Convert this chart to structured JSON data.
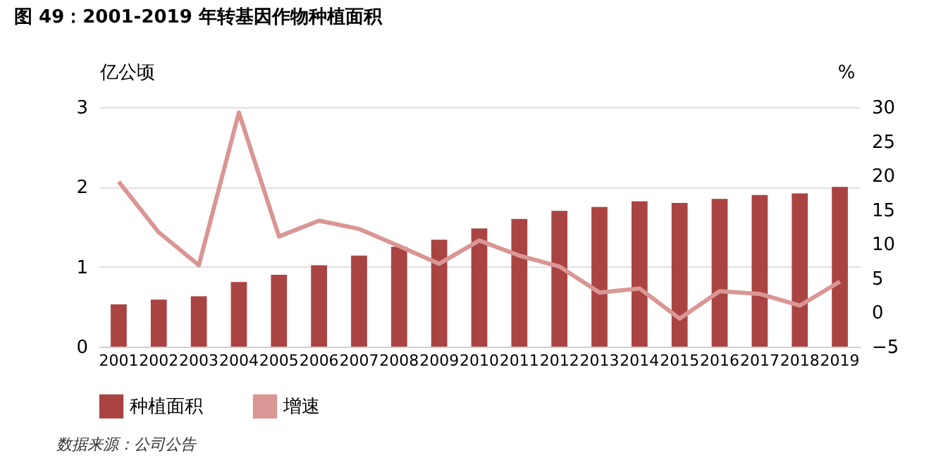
{
  "chart_data": {
    "type": "bar",
    "title": "图 49：2001-2019 年转基因作物种植面积",
    "ylabel": "亿公顷",
    "y2label": "%",
    "categories": [
      "2001",
      "2002",
      "2003",
      "2004",
      "2005",
      "2006",
      "2007",
      "2008",
      "2009",
      "2010",
      "2011",
      "2012",
      "2013",
      "2014",
      "2015",
      "2016",
      "2017",
      "2018",
      "2019"
    ],
    "series": [
      {
        "name": "种植面积",
        "color": "#a94442",
        "values": [
          0.53,
          0.59,
          0.63,
          0.81,
          0.9,
          1.02,
          1.14,
          1.25,
          1.34,
          1.48,
          1.6,
          1.7,
          1.75,
          1.82,
          1.8,
          1.85,
          1.9,
          1.92,
          2.0
        ]
      },
      {
        "name": "增速",
        "type": "line",
        "axis": "y2",
        "color": "#d99694",
        "values": [
          19.1,
          11.7,
          6.9,
          29.2,
          11.1,
          13.4,
          12.2,
          9.7,
          7.1,
          10.5,
          8.3,
          6.7,
          2.9,
          3.5,
          -0.9,
          3.1,
          2.7,
          1.0,
          4.5
        ]
      }
    ],
    "ylim": [
      0,
      3
    ],
    "yticks": [
      0,
      1,
      2,
      3
    ],
    "y2lim": [
      -5,
      30
    ],
    "y2ticks": [
      -5,
      0,
      5,
      10,
      15,
      20,
      25,
      30
    ],
    "grid": "y",
    "legend": "bottom",
    "marker": "none",
    "line_style": "solid",
    "annotations": [
      "数据来源：公司公告"
    ]
  }
}
